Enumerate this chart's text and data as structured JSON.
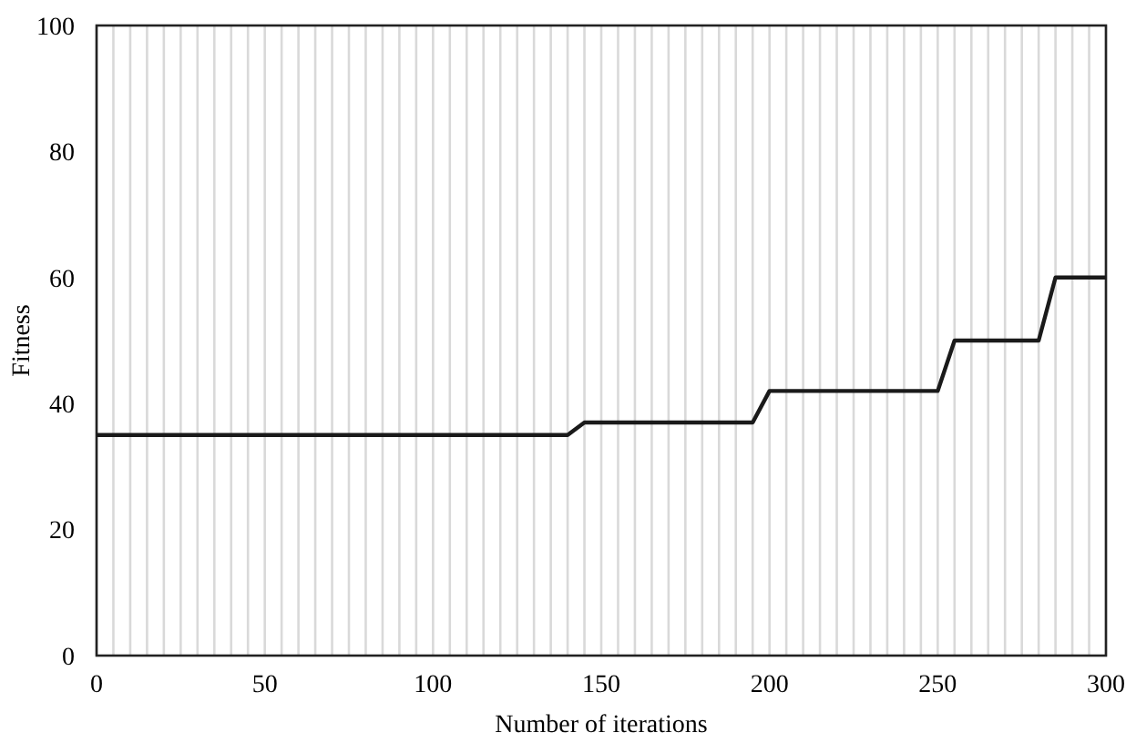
{
  "chart_data": {
    "type": "line",
    "xlabel": "Number of iterations",
    "ylabel": "Fitness",
    "x": [
      0,
      140,
      145,
      195,
      200,
      250,
      255,
      280,
      285,
      300
    ],
    "series": [
      {
        "color": "#1a1a1a",
        "values": [
          35,
          35,
          37,
          37,
          42,
          42,
          50,
          50,
          60,
          60
        ]
      }
    ],
    "xlim": [
      0,
      300
    ],
    "ylim": [
      0,
      100
    ],
    "xticks": [
      0,
      {
        "value": 5,
        "label": null
      },
      {
        "value": 10,
        "label": null
      },
      {
        "value": 15,
        "label": null
      },
      {
        "value": 20,
        "label": null
      },
      {
        "value": 25,
        "label": null
      },
      {
        "value": 30,
        "label": null
      },
      {
        "value": 35,
        "label": null
      },
      {
        "value": 40,
        "label": null
      },
      {
        "value": 45,
        "label": null
      },
      50,
      {
        "value": 55,
        "label": null
      },
      {
        "value": 60,
        "label": null
      },
      {
        "value": 65,
        "label": null
      },
      {
        "value": 70,
        "label": null
      },
      {
        "value": 75,
        "label": null
      },
      {
        "value": 80,
        "label": null
      },
      {
        "value": 85,
        "label": null
      },
      {
        "value": 90,
        "label": null
      },
      {
        "value": 95,
        "label": null
      },
      100,
      {
        "value": 105,
        "label": null
      },
      {
        "value": 110,
        "label": null
      },
      {
        "value": 115,
        "label": null
      },
      {
        "value": 120,
        "label": null
      },
      {
        "value": 125,
        "label": null
      },
      {
        "value": 130,
        "label": null
      },
      {
        "value": 135,
        "label": null
      },
      {
        "value": 140,
        "label": null
      },
      {
        "value": 145,
        "label": null
      },
      150,
      {
        "value": 155,
        "label": null
      },
      {
        "value": 160,
        "label": null
      },
      {
        "value": 165,
        "label": null
      },
      {
        "value": 170,
        "label": null
      },
      {
        "value": 175,
        "label": null
      },
      {
        "value": 180,
        "label": null
      },
      {
        "value": 185,
        "label": null
      },
      {
        "value": 190,
        "label": null
      },
      {
        "value": 195,
        "label": null
      },
      200,
      {
        "value": 205,
        "label": null
      },
      {
        "value": 210,
        "label": null
      },
      {
        "value": 215,
        "label": null
      },
      {
        "value": 220,
        "label": null
      },
      {
        "value": 225,
        "label": null
      },
      {
        "value": 230,
        "label": null
      },
      {
        "value": 235,
        "label": null
      },
      {
        "value": 240,
        "label": null
      },
      {
        "value": 245,
        "label": null
      },
      250,
      {
        "value": 255,
        "label": null
      },
      {
        "value": 260,
        "label": null
      },
      {
        "value": 265,
        "label": null
      },
      {
        "value": 270,
        "label": null
      },
      {
        "value": 275,
        "label": null
      },
      {
        "value": 280,
        "label": null
      },
      {
        "value": 285,
        "label": null
      },
      {
        "value": 290,
        "label": null
      },
      {
        "value": 295,
        "label": null
      },
      300
    ],
    "yticks": [
      0,
      20,
      40,
      60,
      80,
      100
    ],
    "grid": "x",
    "line_style": "solid",
    "marker": "none"
  }
}
